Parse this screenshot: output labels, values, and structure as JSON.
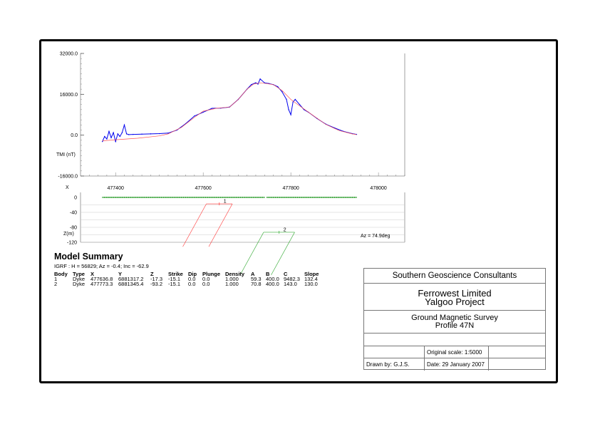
{
  "chart_data": [
    {
      "type": "line",
      "title": "",
      "ylabel": "TMI (nT)",
      "xlabel": "X",
      "xlim": [
        477320,
        478060
      ],
      "ylim": [
        -16000,
        32000
      ],
      "y_ticks": [
        "32000.0",
        "16000.0",
        "0.0",
        "-16000.0"
      ],
      "y_tick_values": [
        32000,
        16000,
        0,
        -16000
      ],
      "x_ticks": [
        "477400",
        "477600",
        "477800",
        "478000"
      ],
      "x_tick_values": [
        477400,
        477600,
        477800,
        478000
      ],
      "series": [
        {
          "color": "#0000ee",
          "style": "observed",
          "x": [
            477370,
            477375,
            477380,
            477385,
            477390,
            477395,
            477400,
            477405,
            477410,
            477415,
            477420,
            477425,
            477430,
            477440,
            477460,
            477480,
            477500,
            477520,
            477540,
            477560,
            477580,
            477600,
            477620,
            477640,
            477660,
            477680,
            477700,
            477710,
            477720,
            477725,
            477730,
            477740,
            477750,
            477760,
            477770,
            477780,
            477790,
            477795,
            477800,
            477805,
            477810,
            477820,
            477830,
            477840,
            477860,
            477880,
            477900,
            477920,
            477940,
            477950
          ],
          "values": [
            -2500,
            -500,
            -1500,
            1500,
            -1000,
            1000,
            -2500,
            500,
            -500,
            1000,
            4000,
            500,
            200,
            300,
            400,
            500,
            600,
            800,
            2000,
            4500,
            7500,
            9000,
            10500,
            10600,
            11000,
            14000,
            18000,
            19800,
            20500,
            20000,
            22000,
            20500,
            20200,
            19800,
            19000,
            17000,
            14000,
            10000,
            8000,
            13000,
            14000,
            12000,
            10000,
            9000,
            6500,
            4300,
            2800,
            1500,
            600,
            300
          ]
        },
        {
          "color": "#ff5555",
          "style": "calculated",
          "x": [
            477370,
            477400,
            477450,
            477500,
            477520,
            477550,
            477580,
            477600,
            477630,
            477660,
            477680,
            477700,
            477715,
            477730,
            477745,
            477760,
            477780,
            477800,
            477820,
            477850,
            477880,
            477910,
            477940,
            477950
          ],
          "values": [
            -2200,
            -1800,
            -1200,
            -300,
            500,
            3000,
            7000,
            9400,
            10500,
            11000,
            14000,
            18000,
            20000,
            20500,
            20200,
            19800,
            17500,
            14000,
            11500,
            7800,
            4200,
            1800,
            500,
            200
          ]
        }
      ]
    },
    {
      "type": "scatter",
      "title": "",
      "ylabel": "Z(m)",
      "ylim": [
        -120,
        0
      ],
      "y_ticks": [
        "0",
        "-40",
        "-80",
        "-120"
      ],
      "y_tick_values": [
        0,
        -40,
        -80,
        -120
      ],
      "annotation": "Az = 74.9deg",
      "bodies": [
        {
          "label": "1",
          "x": 477636.8,
          "z": -17.3,
          "color": "#ff3333"
        },
        {
          "label": "2",
          "x": 477773.3,
          "z": -93.2,
          "color": "#33aa33"
        }
      ]
    }
  ],
  "summary": {
    "title": "Model Summary",
    "igrf": "IGRF :    H = 56829;  Az = -0.4;  Inc = -62.9",
    "headers": [
      "Body",
      "Type",
      "X",
      "Y",
      "Z",
      "Strike",
      "Dip",
      "Plunge",
      "Density",
      "A",
      "B",
      "C",
      "Slope"
    ],
    "rows": [
      [
        "1",
        "Dyke",
        "477636.8",
        "6881317.2",
        "-17.3",
        "-15.1",
        "0.0",
        "0.0",
        "1.000",
        "59.3",
        "400.0",
        "9482.3",
        "132.4"
      ],
      [
        "2",
        "Dyke",
        "477773.3",
        "6881345.4",
        "-93.2",
        "-15.1",
        "0.0",
        "0.0",
        "1.000",
        "70.8",
        "400.0",
        "143.0",
        "130.0"
      ]
    ]
  },
  "title_block": {
    "company": "Southern Geoscience Consultants",
    "client_line1": "Ferrowest Limited",
    "client_line2": "Yalgoo Project",
    "survey_line1": "Ground Magnetic Survey",
    "survey_line2": "Profile 47N",
    "scale": "Original scale: 1:5000",
    "drawn_by": "Drawn by: G.J.S.",
    "date": "Date: 29 January 2007"
  }
}
